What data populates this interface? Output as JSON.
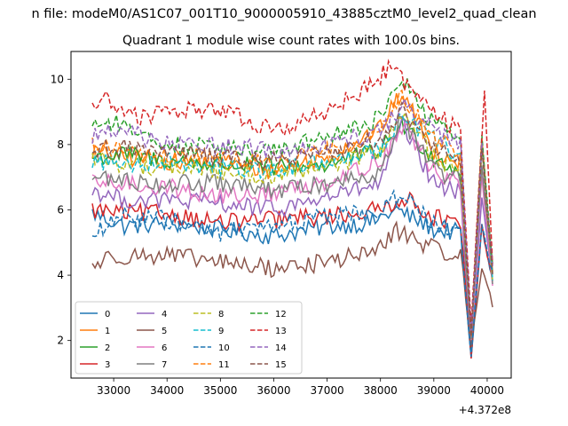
{
  "chart_data": {
    "type": "line",
    "suptitle": "n file: modeM0/AS1C07_001T10_9000005910_43885cztM0_level2_quad_clean",
    "title": "Quadrant 1 module wise count rates with 100.0s bins.",
    "xlabel": "",
    "ylabel": "",
    "x_offset_label": "+4.372e8",
    "x_range": [
      32600,
      40100
    ],
    "xlim": [
      32200,
      40450
    ],
    "ylim": [
      0.85,
      10.85
    ],
    "x_ticks": [
      33000,
      34000,
      35000,
      36000,
      37000,
      38000,
      39000,
      40000
    ],
    "x_tick_labels": [
      "33000",
      "34000",
      "35000",
      "36000",
      "37000",
      "38000",
      "39000",
      "40000"
    ],
    "y_ticks": [
      2,
      4,
      6,
      8,
      10
    ],
    "y_tick_labels": [
      "2",
      "4",
      "6",
      "8",
      "10"
    ],
    "grid": false,
    "legend": {
      "placement": "lower-left",
      "columns": 4
    },
    "colors": [
      "#1f77b4",
      "#ff7f0e",
      "#2ca02c",
      "#d62728",
      "#9467bd",
      "#8c564b",
      "#e377c2",
      "#7f7f7f",
      "#bcbd22",
      "#17becf",
      "#1f77b4",
      "#ff7f0e",
      "#2ca02c",
      "#d62728",
      "#9467bd",
      "#8c564b"
    ],
    "series": [
      {
        "name": "0",
        "dashed": false,
        "base": 5.6,
        "keypoints": [
          [
            32600,
            5.9
          ],
          [
            33200,
            5.5
          ],
          [
            34000,
            5.6
          ],
          [
            35000,
            5.4
          ],
          [
            36000,
            5.2
          ],
          [
            37000,
            5.5
          ],
          [
            37800,
            5.6
          ],
          [
            38300,
            6.0
          ],
          [
            39000,
            5.4
          ],
          [
            39500,
            5.3
          ],
          [
            39700,
            1.4
          ],
          [
            39900,
            5.5
          ],
          [
            40100,
            3.8
          ]
        ]
      },
      {
        "name": "1",
        "dashed": false,
        "base": 7.6,
        "keypoints": [
          [
            32600,
            7.8
          ],
          [
            33200,
            7.6
          ],
          [
            34000,
            7.5
          ],
          [
            35000,
            7.4
          ],
          [
            36000,
            7.2
          ],
          [
            37000,
            7.6
          ],
          [
            38000,
            8.5
          ],
          [
            38400,
            9.6
          ],
          [
            39000,
            7.8
          ],
          [
            39500,
            7.5
          ],
          [
            39700,
            2.0
          ],
          [
            39900,
            8.2
          ],
          [
            40100,
            4.0
          ]
        ]
      },
      {
        "name": "2",
        "dashed": false,
        "base": 7.5,
        "keypoints": [
          [
            32600,
            7.6
          ],
          [
            33200,
            7.7
          ],
          [
            34000,
            7.5
          ],
          [
            35000,
            7.4
          ],
          [
            36000,
            7.3
          ],
          [
            37000,
            7.4
          ],
          [
            38000,
            7.8
          ],
          [
            38400,
            8.6
          ],
          [
            39000,
            7.6
          ],
          [
            39500,
            7.2
          ],
          [
            39700,
            1.8
          ],
          [
            39900,
            8.0
          ],
          [
            40100,
            4.0
          ]
        ]
      },
      {
        "name": "3",
        "dashed": false,
        "base": 5.8,
        "keypoints": [
          [
            32600,
            6.0
          ],
          [
            33200,
            5.9
          ],
          [
            34000,
            5.9
          ],
          [
            35000,
            5.6
          ],
          [
            36000,
            5.7
          ],
          [
            37000,
            5.8
          ],
          [
            38000,
            6.0
          ],
          [
            38400,
            6.4
          ],
          [
            39000,
            5.8
          ],
          [
            39500,
            5.5
          ],
          [
            39700,
            1.5
          ],
          [
            39900,
            5.5
          ],
          [
            40100,
            3.8
          ]
        ]
      },
      {
        "name": "4",
        "dashed": false,
        "base": 6.4,
        "keypoints": [
          [
            32600,
            6.6
          ],
          [
            33200,
            6.3
          ],
          [
            34000,
            6.3
          ],
          [
            35000,
            6.2
          ],
          [
            36000,
            6.0
          ],
          [
            37000,
            6.4
          ],
          [
            38000,
            6.8
          ],
          [
            38400,
            8.6
          ],
          [
            39000,
            6.8
          ],
          [
            39500,
            6.5
          ],
          [
            39700,
            1.9
          ],
          [
            39900,
            6.4
          ],
          [
            40100,
            3.9
          ]
        ]
      },
      {
        "name": "5",
        "dashed": false,
        "base": 4.5,
        "keypoints": [
          [
            32600,
            4.3
          ],
          [
            33000,
            4.6
          ],
          [
            34000,
            4.6
          ],
          [
            35000,
            4.4
          ],
          [
            36000,
            4.2
          ],
          [
            37000,
            4.4
          ],
          [
            38000,
            4.8
          ],
          [
            38300,
            5.4
          ],
          [
            39000,
            4.8
          ],
          [
            39500,
            4.6
          ],
          [
            39700,
            1.8
          ],
          [
            39900,
            4.3
          ],
          [
            40100,
            3.1
          ]
        ]
      },
      {
        "name": "6",
        "dashed": false,
        "base": 6.6,
        "keypoints": [
          [
            32600,
            6.8
          ],
          [
            33200,
            6.8
          ],
          [
            34000,
            6.7
          ],
          [
            35000,
            6.4
          ],
          [
            36000,
            6.5
          ],
          [
            37000,
            6.9
          ],
          [
            38000,
            7.5
          ],
          [
            38400,
            8.6
          ],
          [
            39000,
            7.2
          ],
          [
            39500,
            6.8
          ],
          [
            39700,
            2.0
          ],
          [
            39900,
            7.0
          ],
          [
            40100,
            3.8
          ]
        ]
      },
      {
        "name": "7",
        "dashed": false,
        "base": 6.9,
        "keypoints": [
          [
            32600,
            7.0
          ],
          [
            33200,
            6.9
          ],
          [
            34000,
            6.8
          ],
          [
            35000,
            6.8
          ],
          [
            36000,
            6.6
          ],
          [
            37000,
            6.8
          ],
          [
            38000,
            7.2
          ],
          [
            38400,
            8.8
          ],
          [
            39000,
            7.2
          ],
          [
            39500,
            6.9
          ],
          [
            39700,
            2.0
          ],
          [
            39900,
            7.4
          ],
          [
            40100,
            3.9
          ]
        ]
      },
      {
        "name": "8",
        "dashed": true,
        "base": 7.3,
        "keypoints": [
          [
            32600,
            7.6
          ],
          [
            33200,
            7.4
          ],
          [
            34000,
            7.3
          ],
          [
            35000,
            7.2
          ],
          [
            36000,
            7.0
          ],
          [
            37000,
            7.3
          ],
          [
            38000,
            7.8
          ],
          [
            38400,
            9.0
          ],
          [
            39000,
            7.6
          ],
          [
            39500,
            7.3
          ],
          [
            39700,
            2.1
          ],
          [
            39900,
            7.8
          ],
          [
            40100,
            4.0
          ]
        ]
      },
      {
        "name": "9",
        "dashed": true,
        "base": 7.4,
        "keypoints": [
          [
            32600,
            7.5
          ],
          [
            33200,
            7.4
          ],
          [
            34000,
            7.5
          ],
          [
            35000,
            7.3
          ],
          [
            36000,
            7.2
          ],
          [
            37000,
            7.5
          ],
          [
            38000,
            7.9
          ],
          [
            38400,
            8.8
          ],
          [
            39000,
            8.2
          ],
          [
            39500,
            7.6
          ],
          [
            39700,
            2.1
          ],
          [
            39900,
            8.0
          ],
          [
            40100,
            4.1
          ]
        ]
      },
      {
        "name": "10",
        "dashed": true,
        "base": 5.6,
        "keypoints": [
          [
            32600,
            5.2
          ],
          [
            33200,
            5.8
          ],
          [
            34000,
            5.7
          ],
          [
            35000,
            5.3
          ],
          [
            36000,
            5.5
          ],
          [
            37000,
            5.8
          ],
          [
            38000,
            6.0
          ],
          [
            38400,
            6.5
          ],
          [
            39000,
            5.6
          ],
          [
            39500,
            5.2
          ],
          [
            39700,
            1.6
          ],
          [
            39900,
            5.6
          ],
          [
            40100,
            3.9
          ]
        ]
      },
      {
        "name": "11",
        "dashed": true,
        "base": 7.7,
        "keypoints": [
          [
            32600,
            8.0
          ],
          [
            33200,
            7.8
          ],
          [
            34000,
            7.6
          ],
          [
            35000,
            7.6
          ],
          [
            36000,
            7.4
          ],
          [
            37000,
            7.8
          ],
          [
            38000,
            8.4
          ],
          [
            38400,
            9.5
          ],
          [
            39000,
            8.2
          ],
          [
            39500,
            7.8
          ],
          [
            39700,
            2.2
          ],
          [
            39900,
            8.1
          ],
          [
            40100,
            4.1
          ]
        ]
      },
      {
        "name": "12",
        "dashed": true,
        "base": 8.2,
        "keypoints": [
          [
            32600,
            8.7
          ],
          [
            33200,
            8.6
          ],
          [
            34000,
            8.0
          ],
          [
            35000,
            7.9
          ],
          [
            36000,
            7.8
          ],
          [
            37000,
            8.2
          ],
          [
            38000,
            8.8
          ],
          [
            38400,
            10.0
          ],
          [
            39000,
            8.6
          ],
          [
            39500,
            8.2
          ],
          [
            39700,
            2.3
          ],
          [
            39900,
            8.3
          ],
          [
            40100,
            4.2
          ]
        ]
      },
      {
        "name": "13",
        "dashed": true,
        "base": 8.8,
        "keypoints": [
          [
            32600,
            9.2
          ],
          [
            32800,
            9.4
          ],
          [
            33500,
            8.8
          ],
          [
            34000,
            9.0
          ],
          [
            35000,
            9.1
          ],
          [
            36000,
            8.4
          ],
          [
            37000,
            9.0
          ],
          [
            37800,
            9.8
          ],
          [
            38200,
            10.4
          ],
          [
            38600,
            9.6
          ],
          [
            39000,
            9.0
          ],
          [
            39500,
            8.4
          ],
          [
            39700,
            2.5
          ],
          [
            39950,
            9.7
          ],
          [
            40100,
            4.2
          ]
        ]
      },
      {
        "name": "14",
        "dashed": true,
        "base": 8.0,
        "keypoints": [
          [
            32600,
            8.3
          ],
          [
            33200,
            8.4
          ],
          [
            34000,
            8.0
          ],
          [
            35000,
            8.0
          ],
          [
            36000,
            7.8
          ],
          [
            37000,
            8.0
          ],
          [
            38000,
            8.4
          ],
          [
            38400,
            9.2
          ],
          [
            39000,
            8.4
          ],
          [
            39500,
            8.0
          ],
          [
            39700,
            2.2
          ],
          [
            39900,
            8.0
          ],
          [
            40100,
            4.2
          ]
        ]
      },
      {
        "name": "15",
        "dashed": true,
        "base": 7.7,
        "keypoints": [
          [
            32600,
            7.8
          ],
          [
            33200,
            7.9
          ],
          [
            34000,
            7.8
          ],
          [
            35000,
            7.6
          ],
          [
            36000,
            7.5
          ],
          [
            37000,
            7.7
          ],
          [
            38000,
            8.2
          ],
          [
            38400,
            9.0
          ],
          [
            39000,
            7.9
          ],
          [
            39500,
            7.6
          ],
          [
            39700,
            2.1
          ],
          [
            39900,
            7.9
          ],
          [
            40100,
            4.0
          ]
        ]
      }
    ]
  }
}
